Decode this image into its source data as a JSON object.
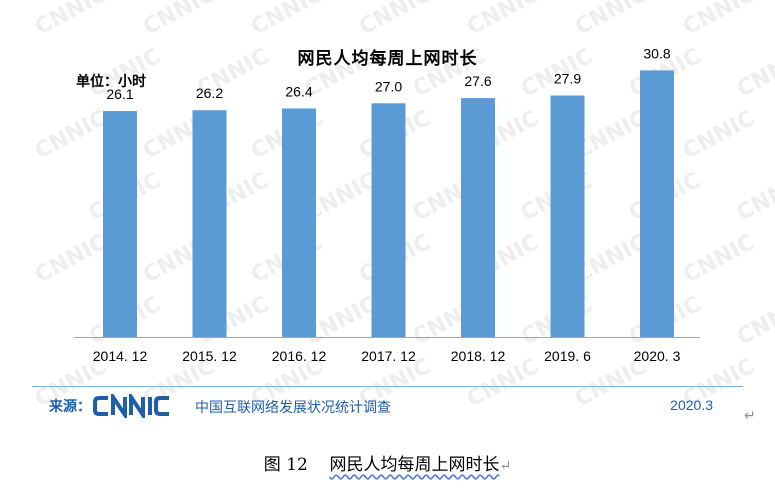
{
  "chart_data": {
    "type": "bar",
    "title": "网民人均每周上网时长",
    "ylabel": "单位：小时",
    "xlabel": "",
    "categories": [
      "2014. 12",
      "2015. 12",
      "2016. 12",
      "2017. 12",
      "2018. 12",
      "2019. 6",
      "2020. 3"
    ],
    "values": [
      26.1,
      26.2,
      26.4,
      27.0,
      27.6,
      27.9,
      30.8
    ],
    "value_labels": [
      "26.1",
      "26.2",
      "26.4",
      "27.0",
      "27.6",
      "27.9",
      "30.8"
    ],
    "ylim": [
      0,
      32
    ],
    "bar_color": "#5b9bd5",
    "grid": false,
    "legend": "none"
  },
  "footer": {
    "source_label": "来源：",
    "logo_text": "CNNIC",
    "org_name": "中国互联网络发展状况统计调查",
    "date": "2020.3"
  },
  "caption": {
    "figure_label": "图  12",
    "title": "网民人均每周上网时长"
  },
  "watermark_text": "CNNIC",
  "colors": {
    "brand_blue": "#1f5fa8",
    "bar": "#5b9bd5",
    "divider": "#7eb0da"
  }
}
